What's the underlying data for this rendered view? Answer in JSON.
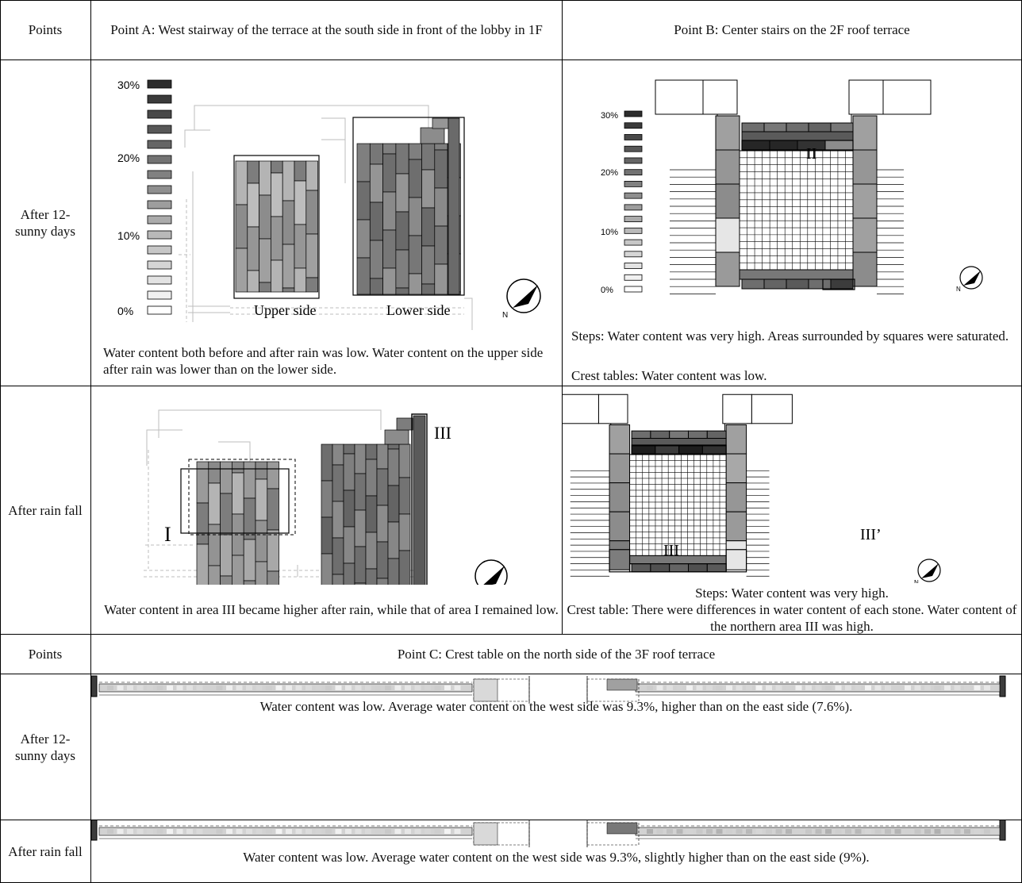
{
  "table": {
    "header": {
      "points_label": "Points",
      "point_a": "Point A: West stairway of the terrace at the south side in front of the lobby in 1F",
      "point_b": "Point B: Center stairs on the 2F roof terrace"
    },
    "rows": {
      "sunny": "After 12-sunny days",
      "rain": "After rain fall"
    },
    "legend": {
      "ticks": [
        "30%",
        "20%",
        "10%",
        "0%"
      ]
    },
    "a_sunny": {
      "upper_label": "Upper side",
      "lower_label": "Lower side",
      "caption": "Water content both before and after rain was low. Water content on the upper side after rain was lower than on the lower side."
    },
    "b_sunny": {
      "mark_ii": "II",
      "caption_line1": "Steps: Water content was very high. Areas surrounded by squares were saturated.",
      "caption_line2": "Crest tables: Water content was low."
    },
    "a_rain": {
      "mark_i": "I",
      "mark_iii": "III",
      "caption": "Water content in area III became higher after rain, while that of area I remained low."
    },
    "b_rain": {
      "mark_iii": "III",
      "mark_iii_prime": "III’",
      "caption_line1": "Steps: Water content was very high.",
      "caption_line2": "Crest table: There were differences in water content of each stone. Water content of the northern area III was high."
    },
    "header2": {
      "points_label": "Points",
      "point_c": "Point C: Crest table on the north side of the 3F roof terrace"
    },
    "c_sunny": {
      "caption": "Water content was low. Average water content on the west side was 9.3%, higher than on the east side (7.6%)."
    },
    "c_rain": {
      "caption": "Water content was low. Average water content on the west side was 9.3%, slightly higher than on the east side (9%)."
    },
    "compass_label": "N"
  },
  "colors": {
    "ink": "#000000",
    "dark": "#3c3c3c",
    "mid": "#7f7f7f",
    "light": "#b4b4b4",
    "pale": "#e6e6e6"
  }
}
